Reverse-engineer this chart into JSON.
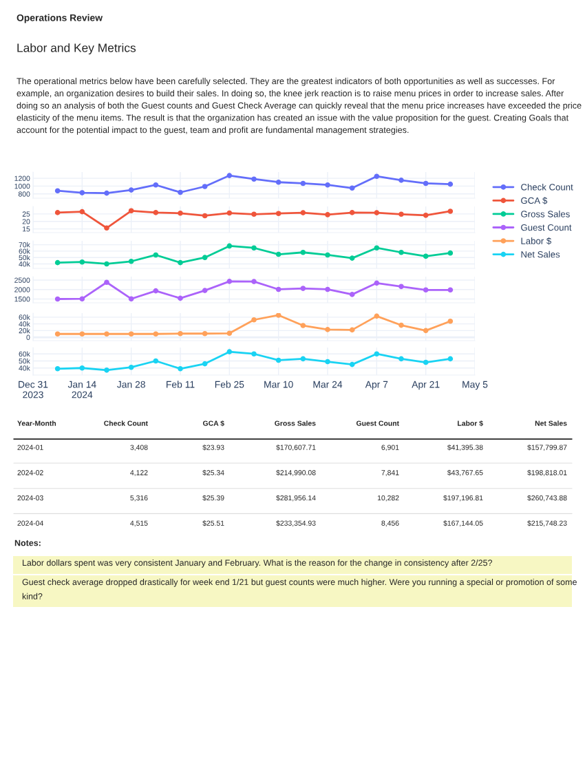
{
  "chart_data": [
    {
      "type": "line",
      "title": "Labor and Key Metrics",
      "subtitle": "The operational metrics below have been carefully selected. They are the greatest indicators of both opportunities as well as successes. For example, an organization desires to build their sales. In doing so, the knee jerk reaction is to raise menu prices in order to increase sales. After doing so an analysis of both the Guest counts and Guest Check Average can quickly reveal that the menu price increases have exceeded the price elasticity of the menu items. The result is that the organization has created an issue with the value proposition for the guest. Creating Goals that account for the potential impact to the guest, team and profit are fundamental management strategies.",
      "annotations": [
        "Operations Review"
      ],
      "x": [
        "2024-01-07",
        "2024-01-14",
        "2024-01-21",
        "2024-01-28",
        "2024-02-04",
        "2024-02-11",
        "2024-02-18",
        "2024-02-25",
        "2024-03-03",
        "2024-03-10",
        "2024-03-17",
        "2024-03-24",
        "2024-03-31",
        "2024-04-07",
        "2024-04-14",
        "2024-04-21",
        "2024-04-28"
      ],
      "series": [
        {
          "name": "Check Count",
          "color": "#636efa",
          "values": [
            880,
            830,
            820,
            900,
            1030,
            840,
            990,
            1270,
            1180,
            1100,
            1070,
            1030,
            950,
            1250,
            1150,
            1070,
            1050
          ]
        }
      ],
      "xlim": [
        "2023-12-31",
        "2024-05-05"
      ],
      "xticks": [
        {
          "value": "2023-12-31",
          "label": null
        },
        {
          "value": "2024-01-14",
          "label": null
        },
        {
          "value": "2024-01-28",
          "label": null
        },
        {
          "value": "2024-02-11",
          "label": null
        },
        {
          "value": "2024-02-25",
          "label": null
        },
        {
          "value": "2024-03-10",
          "label": null
        },
        {
          "value": "2024-03-24",
          "label": null
        },
        {
          "value": "2024-04-07",
          "label": null
        },
        {
          "value": "2024-04-21",
          "label": null
        },
        {
          "value": "2024-05-05",
          "label": null
        }
      ],
      "ylim": [
        690,
        1360
      ],
      "yticks": [
        800,
        1000,
        1200
      ],
      "grid": true,
      "marker": "circle",
      "line_style": "solid",
      "legend": "right",
      "tick_labels": "y"
    },
    {
      "type": "line",
      "x": [
        "2024-01-07",
        "2024-01-14",
        "2024-01-21",
        "2024-01-28",
        "2024-02-04",
        "2024-02-11",
        "2024-02-18",
        "2024-02-25",
        "2024-03-03",
        "2024-03-10",
        "2024-03-17",
        "2024-03-24",
        "2024-03-31",
        "2024-04-07",
        "2024-04-14",
        "2024-04-21",
        "2024-04-28"
      ],
      "series": [
        {
          "name": "GCA $",
          "color": "#ef553b",
          "values": [
            25.9,
            26.5,
            15.6,
            27.1,
            25.9,
            25.5,
            23.8,
            25.6,
            24.8,
            25.3,
            25.8,
            24.5,
            25.9,
            25.8,
            24.8,
            24.1,
            26.8
          ]
        }
      ],
      "xlim": [
        "2023-12-31",
        "2024-05-05"
      ],
      "xticks": [
        {
          "value": "2023-12-31",
          "label": null
        },
        {
          "value": "2024-01-14",
          "label": null
        },
        {
          "value": "2024-01-28",
          "label": null
        },
        {
          "value": "2024-02-11",
          "label": null
        },
        {
          "value": "2024-02-25",
          "label": null
        },
        {
          "value": "2024-03-10",
          "label": null
        },
        {
          "value": "2024-03-24",
          "label": null
        },
        {
          "value": "2024-04-07",
          "label": null
        },
        {
          "value": "2024-04-21",
          "label": null
        },
        {
          "value": "2024-05-05",
          "label": null
        }
      ],
      "ylim": [
        12.5,
        30
      ],
      "yticks": [
        15,
        20,
        25
      ],
      "grid": true,
      "marker": "circle",
      "line_style": "solid",
      "legend": "right",
      "tick_labels": "y"
    },
    {
      "type": "line",
      "x": [
        "2024-01-07",
        "2024-01-14",
        "2024-01-21",
        "2024-01-28",
        "2024-02-04",
        "2024-02-11",
        "2024-02-18",
        "2024-02-25",
        "2024-03-03",
        "2024-03-10",
        "2024-03-17",
        "2024-03-24",
        "2024-03-31",
        "2024-04-07",
        "2024-04-14",
        "2024-04-21",
        "2024-04-28"
      ],
      "series": [
        {
          "name": "Gross Sales",
          "color": "#00cc96",
          "values": [
            42000,
            43000,
            40000,
            44000,
            54000,
            42000,
            50000,
            68000,
            65000,
            55000,
            58000,
            54000,
            49000,
            65000,
            58000,
            52000,
            57000
          ]
        }
      ],
      "xlim": [
        "2023-12-31",
        "2024-05-05"
      ],
      "xticks": [
        {
          "value": "2023-12-31",
          "label": null
        },
        {
          "value": "2024-01-14",
          "label": null
        },
        {
          "value": "2024-01-28",
          "label": null
        },
        {
          "value": "2024-02-11",
          "label": null
        },
        {
          "value": "2024-02-25",
          "label": null
        },
        {
          "value": "2024-03-10",
          "label": null
        },
        {
          "value": "2024-03-24",
          "label": null
        },
        {
          "value": "2024-04-07",
          "label": null
        },
        {
          "value": "2024-04-21",
          "label": null
        },
        {
          "value": "2024-05-05",
          "label": null
        }
      ],
      "ylim": [
        33000,
        76000
      ],
      "yticks": [
        {
          "value": 40000,
          "label": "40k"
        },
        {
          "value": 50000,
          "label": "50k"
        },
        {
          "value": 60000,
          "label": "60k"
        },
        {
          "value": 70000,
          "label": "70k"
        }
      ],
      "grid": true,
      "marker": "circle",
      "line_style": "solid",
      "legend": "right",
      "tick_labels": "y"
    },
    {
      "type": "line",
      "x": [
        "2024-01-07",
        "2024-01-14",
        "2024-01-21",
        "2024-01-28",
        "2024-02-04",
        "2024-02-11",
        "2024-02-18",
        "2024-02-25",
        "2024-03-03",
        "2024-03-10",
        "2024-03-17",
        "2024-03-24",
        "2024-03-31",
        "2024-04-07",
        "2024-04-14",
        "2024-04-21",
        "2024-04-28"
      ],
      "series": [
        {
          "name": "Guest Count",
          "color": "#ab63fa",
          "values": [
            1500,
            1510,
            2380,
            1510,
            1930,
            1540,
            1950,
            2430,
            2420,
            2010,
            2060,
            2010,
            1740,
            2340,
            2160,
            1980,
            1980
          ]
        }
      ],
      "xlim": [
        "2023-12-31",
        "2024-05-05"
      ],
      "xticks": [
        {
          "value": "2023-12-31",
          "label": null
        },
        {
          "value": "2024-01-14",
          "label": null
        },
        {
          "value": "2024-01-28",
          "label": null
        },
        {
          "value": "2024-02-11",
          "label": null
        },
        {
          "value": "2024-02-25",
          "label": null
        },
        {
          "value": "2024-03-10",
          "label": null
        },
        {
          "value": "2024-03-24",
          "label": null
        },
        {
          "value": "2024-04-07",
          "label": null
        },
        {
          "value": "2024-04-21",
          "label": null
        },
        {
          "value": "2024-05-05",
          "label": null
        }
      ],
      "ylim": [
        1300,
        2680
      ],
      "yticks": [
        1500,
        2000,
        2500
      ],
      "grid": true,
      "marker": "circle",
      "line_style": "solid",
      "legend": "right",
      "tick_labels": "y"
    },
    {
      "type": "line",
      "x": [
        "2024-01-07",
        "2024-01-14",
        "2024-01-21",
        "2024-01-28",
        "2024-02-04",
        "2024-02-11",
        "2024-02-18",
        "2024-02-25",
        "2024-03-03",
        "2024-03-10",
        "2024-03-17",
        "2024-03-24",
        "2024-03-31",
        "2024-04-07",
        "2024-04-14",
        "2024-04-21",
        "2024-04-28"
      ],
      "series": [
        {
          "name": "Labor $",
          "color": "#ffa15a",
          "values": [
            10000,
            10000,
            10000,
            10000,
            10000,
            11000,
            11000,
            12000,
            52000,
            66000,
            35000,
            23000,
            22000,
            63000,
            36000,
            20000,
            48000
          ]
        }
      ],
      "xlim": [
        "2023-12-31",
        "2024-05-05"
      ],
      "xticks": [
        {
          "value": "2023-12-31",
          "label": null
        },
        {
          "value": "2024-01-14",
          "label": null
        },
        {
          "value": "2024-01-28",
          "label": null
        },
        {
          "value": "2024-02-11",
          "label": null
        },
        {
          "value": "2024-02-25",
          "label": null
        },
        {
          "value": "2024-03-10",
          "label": null
        },
        {
          "value": "2024-03-24",
          "label": null
        },
        {
          "value": "2024-04-07",
          "label": null
        },
        {
          "value": "2024-04-21",
          "label": null
        },
        {
          "value": "2024-05-05",
          "label": null
        }
      ],
      "ylim": [
        -10000,
        72000
      ],
      "yticks": [
        0,
        {
          "value": 20000,
          "label": "20k"
        },
        {
          "value": 40000,
          "label": "40k"
        },
        {
          "value": 60000,
          "label": "60k"
        }
      ],
      "ref_lines": [
        {
          "axis": "y",
          "value": 0,
          "color": "#ebf0f8"
        }
      ],
      "grid": true,
      "marker": "circle",
      "line_style": "solid",
      "legend": "right",
      "tick_labels": "y"
    },
    {
      "type": "line",
      "x": [
        "2024-01-07",
        "2024-01-14",
        "2024-01-21",
        "2024-01-28",
        "2024-02-04",
        "2024-02-11",
        "2024-02-18",
        "2024-02-25",
        "2024-03-03",
        "2024-03-10",
        "2024-03-17",
        "2024-03-24",
        "2024-03-31",
        "2024-04-07",
        "2024-04-14",
        "2024-04-21",
        "2024-04-28"
      ],
      "series": [
        {
          "name": "Net Sales",
          "color": "#19d3f3",
          "values": [
            39000,
            40000,
            37000,
            41000,
            50000,
            39000,
            46000,
            63000,
            60000,
            51000,
            53000,
            49000,
            45000,
            60000,
            53000,
            48000,
            53000
          ]
        }
      ],
      "xlim": [
        "2023-12-31",
        "2024-05-05"
      ],
      "xticks": [
        {
          "value": "2023-12-31",
          "label": "Dec 31\n2023"
        },
        {
          "value": "2024-01-14",
          "label": "Jan 14\n2024"
        },
        {
          "value": "2024-01-28",
          "label": "Jan 28"
        },
        {
          "value": "2024-02-11",
          "label": "Feb 11"
        },
        {
          "value": "2024-02-25",
          "label": "Feb 25"
        },
        {
          "value": "2024-03-10",
          "label": "Mar 10"
        },
        {
          "value": "2024-03-24",
          "label": "Mar 24"
        },
        {
          "value": "2024-04-07",
          "label": "Apr 7"
        },
        {
          "value": "2024-04-21",
          "label": "Apr 21"
        },
        {
          "value": "2024-05-05",
          "label": "May 5"
        }
      ],
      "ylim": [
        30000,
        69000
      ],
      "yticks": [
        {
          "value": 40000,
          "label": "40k"
        },
        {
          "value": 50000,
          "label": "50k"
        },
        {
          "value": 60000,
          "label": "60k"
        }
      ],
      "grid": true,
      "marker": "circle",
      "line_style": "solid",
      "legend": "right"
    },
    {
      "type": "other",
      "title": "Notes:",
      "categories": [
        "Year-Month",
        "Check Count",
        "GCA $",
        "Gross Sales",
        "Guest Count",
        "Labor $",
        "Net Sales"
      ],
      "y_categories": [
        "2024-01",
        "2024-02",
        "2024-03",
        "2024-04"
      ],
      "annotations": [
        "3,408",
        "$23.93",
        "$170,607.71",
        "6,901",
        "$41,395.38",
        "$157,799.87",
        "4,122",
        "$25.34",
        "$214,990.08",
        "7,841",
        "$43,767.65",
        "$198,818.01",
        "5,316",
        "$25.39",
        "$281,956.14",
        "10,282",
        "$197,196.81",
        "$260,743.88",
        "4,515",
        "$25.51",
        "$233,354.93",
        "8,456",
        "$167,144.05",
        "$215,748.23",
        "Labor dollars spent was very consistent January and February. What is the reason for the change in consistency after 2/25?",
        "Guest check average dropped drastically for week end 1/21 but guest counts were much higher. Were you running a special or promotion of some kind?"
      ]
    }
  ]
}
